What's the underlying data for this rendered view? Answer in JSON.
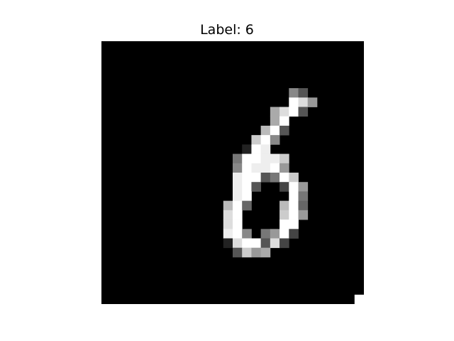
{
  "title": "Label: 6",
  "image": {
    "description_icon": "mnist-digit-image",
    "rows": 28,
    "cols": 28,
    "pixels": [
      "0000000000000000000000000000",
      "0000000000000000000000000000",
      "0000000000000000000000000000",
      "0000000000000000000000000000",
      "0000000000000000000000000000",
      "0000000000000000000085000000",
      "00000000000000000000fd900000",
      "000000000000000000adf5000000",
      "000000000000000000af00000000",
      "00000000000000000bf500000000",
      "0000000000000000cf8000000000",
      "0000000000000002fe0000000000",
      "000000000000007ffeec00000000",
      "000000000000008feef900000000",
      "00000000000000eff57fc0000000",
      "00000000000000ef5004f9000000",
      "00000000000000ef0000f7000000",
      "0000000000000bf6000bf6000000",
      "0000000000000df0000cf9000000",
      "0000000000000df0000ff0000000",
      "0000000000000ef8079f40000000",
      "00000000000002dff5d400000000",
      "000000000000005c9a0000000000",
      "0000000000000000000000000000",
      "0000000000000000000000000000",
      "0000000000000000000000000000",
      "0000000000000000000000000000",
      "000000000000000000000000000f"
    ]
  }
}
